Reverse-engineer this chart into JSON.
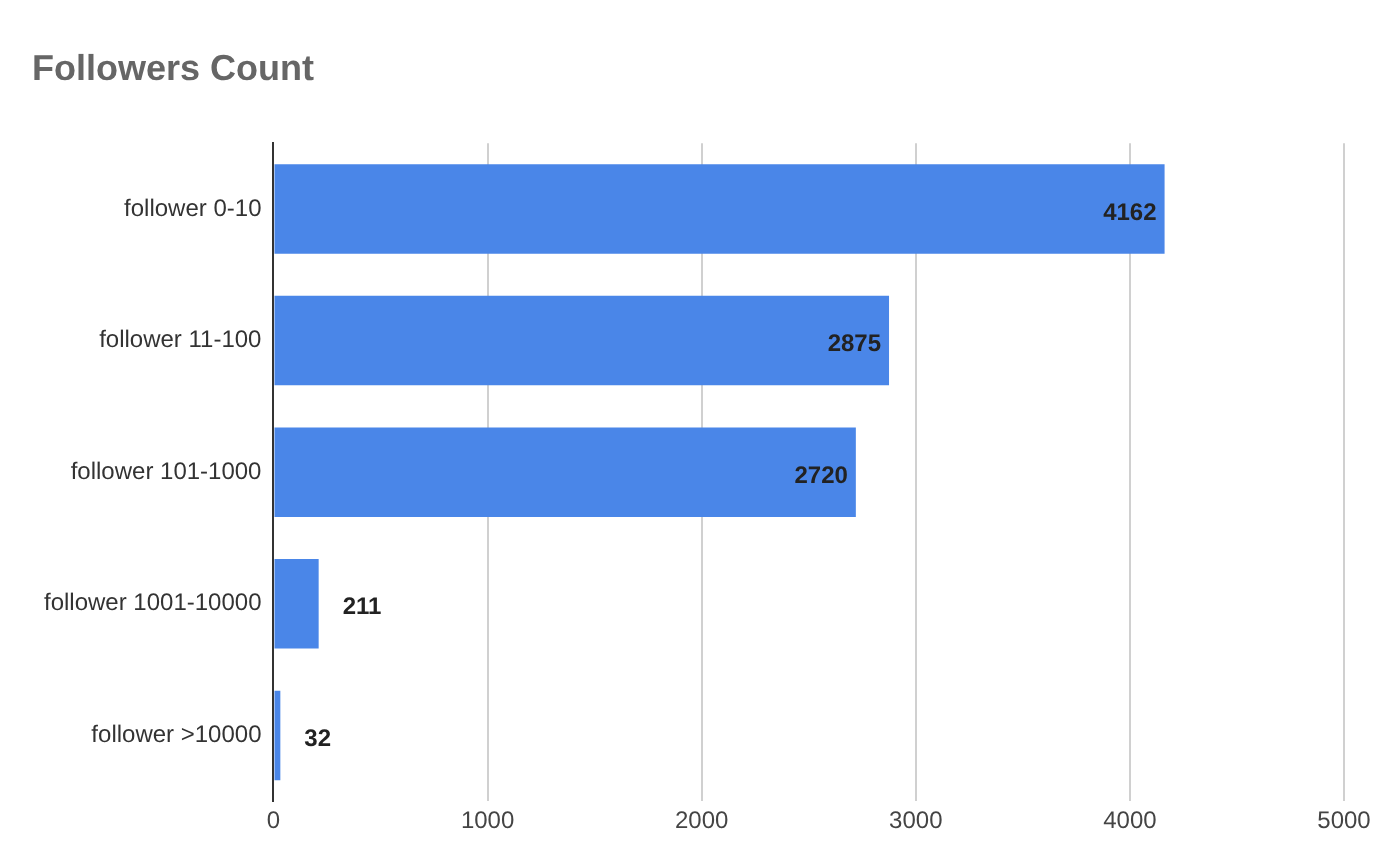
{
  "chart_data": {
    "type": "bar",
    "orientation": "horizontal",
    "title": "Followers Count",
    "categories": [
      "follower 0-10",
      "follower 11-100",
      "follower 101-1000",
      "follower 1001-10000",
      "follower >10000"
    ],
    "values": [
      4162,
      2875,
      2720,
      211,
      32
    ],
    "color": "#4a86e8",
    "xlim": [
      0,
      5000
    ],
    "xticks": [
      0,
      1000,
      2000,
      3000,
      4000,
      5000
    ],
    "grid": "x",
    "legend": false,
    "data_labels": true
  }
}
